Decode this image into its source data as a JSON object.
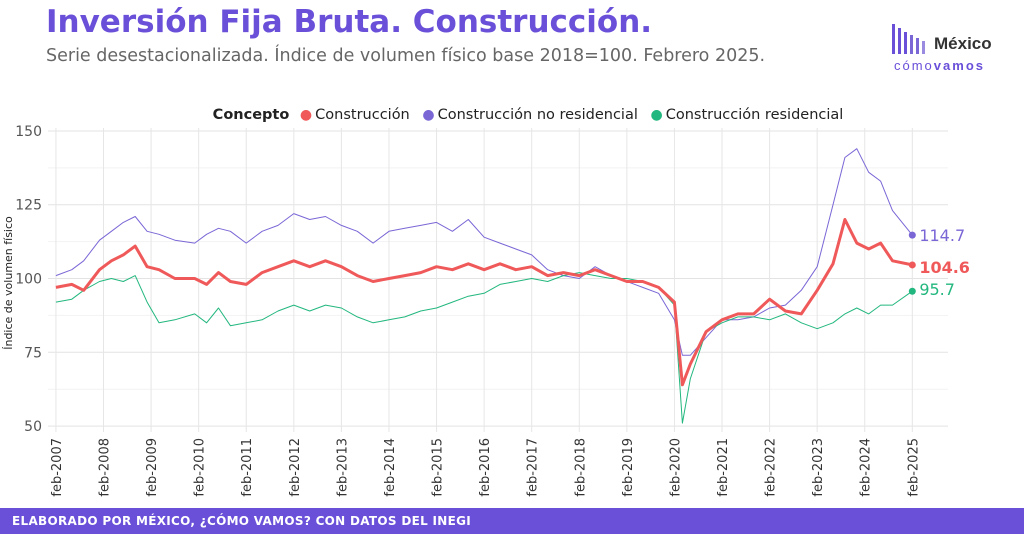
{
  "header": {
    "title": "Inversión Fija Bruta. Construcción.",
    "subtitle": "Serie desestacionalizada. Índice de volumen físico base 2018=100. Febrero 2025."
  },
  "logo": {
    "word1": "México",
    "word2a": "cómo",
    "word2b": "vamos"
  },
  "footer": {
    "text": "ELABORADO POR MÉXICO, ¿CÓMO VAMOS? CON DATOS DEL INEGI"
  },
  "colors": {
    "accent": "#6a4fd9",
    "construccion": "#f0595a",
    "no_residencial": "#7b66d6",
    "residencial": "#22b77e"
  },
  "chart_data": {
    "type": "line",
    "legend_title": "Concepto",
    "legend_position": "top",
    "ylabel": "Índice de volumen físico",
    "xlabel": "",
    "ylim": [
      48,
      151
    ],
    "yticks": [
      50,
      75,
      100,
      125,
      150
    ],
    "grid": true,
    "xticks": [
      "feb-2007",
      "feb-2008",
      "feb-2009",
      "feb-2010",
      "feb-2011",
      "feb-2012",
      "feb-2013",
      "feb-2014",
      "feb-2015",
      "feb-2016",
      "feb-2017",
      "feb-2018",
      "feb-2019",
      "feb-2020",
      "feb-2021",
      "feb-2022",
      "feb-2023",
      "feb-2024",
      "feb-2025"
    ],
    "series": [
      {
        "name": "Construcción",
        "color": "#f0595a",
        "end_label": "104.6",
        "points": [
          [
            "2007-02",
            97
          ],
          [
            "2007-06",
            98
          ],
          [
            "2007-09",
            96
          ],
          [
            "2008-01",
            103
          ],
          [
            "2008-04",
            106
          ],
          [
            "2008-07",
            108
          ],
          [
            "2008-10",
            111
          ],
          [
            "2009-01",
            104
          ],
          [
            "2009-04",
            103
          ],
          [
            "2009-08",
            100
          ],
          [
            "2010-01",
            100
          ],
          [
            "2010-04",
            98
          ],
          [
            "2010-07",
            102
          ],
          [
            "2010-10",
            99
          ],
          [
            "2011-02",
            98
          ],
          [
            "2011-06",
            102
          ],
          [
            "2011-10",
            104
          ],
          [
            "2012-02",
            106
          ],
          [
            "2012-06",
            104
          ],
          [
            "2012-10",
            106
          ],
          [
            "2013-02",
            104
          ],
          [
            "2013-06",
            101
          ],
          [
            "2013-10",
            99
          ],
          [
            "2014-02",
            100
          ],
          [
            "2014-06",
            101
          ],
          [
            "2014-10",
            102
          ],
          [
            "2015-02",
            104
          ],
          [
            "2015-06",
            103
          ],
          [
            "2015-10",
            105
          ],
          [
            "2016-02",
            103
          ],
          [
            "2016-06",
            105
          ],
          [
            "2016-10",
            103
          ],
          [
            "2017-02",
            104
          ],
          [
            "2017-06",
            101
          ],
          [
            "2017-10",
            102
          ],
          [
            "2018-02",
            101
          ],
          [
            "2018-06",
            103
          ],
          [
            "2018-10",
            101
          ],
          [
            "2019-02",
            99
          ],
          [
            "2019-06",
            99
          ],
          [
            "2019-10",
            97
          ],
          [
            "2020-02",
            92
          ],
          [
            "2020-04",
            64
          ],
          [
            "2020-06",
            71
          ],
          [
            "2020-10",
            82
          ],
          [
            "2021-02",
            86
          ],
          [
            "2021-06",
            88
          ],
          [
            "2021-10",
            88
          ],
          [
            "2022-02",
            93
          ],
          [
            "2022-06",
            89
          ],
          [
            "2022-10",
            88
          ],
          [
            "2023-02",
            96
          ],
          [
            "2023-06",
            105
          ],
          [
            "2023-09",
            120
          ],
          [
            "2023-12",
            112
          ],
          [
            "2024-03",
            110
          ],
          [
            "2024-06",
            112
          ],
          [
            "2024-09",
            106
          ],
          [
            "2025-02",
            104.6
          ]
        ]
      },
      {
        "name": "Construcción no residencial",
        "color": "#7b66d6",
        "end_label": "114.7",
        "points": [
          [
            "2007-02",
            101
          ],
          [
            "2007-06",
            103
          ],
          [
            "2007-09",
            106
          ],
          [
            "2008-01",
            113
          ],
          [
            "2008-04",
            116
          ],
          [
            "2008-07",
            119
          ],
          [
            "2008-10",
            121
          ],
          [
            "2009-01",
            116
          ],
          [
            "2009-04",
            115
          ],
          [
            "2009-08",
            113
          ],
          [
            "2010-01",
            112
          ],
          [
            "2010-04",
            115
          ],
          [
            "2010-07",
            117
          ],
          [
            "2010-10",
            116
          ],
          [
            "2011-02",
            112
          ],
          [
            "2011-06",
            116
          ],
          [
            "2011-10",
            118
          ],
          [
            "2012-02",
            122
          ],
          [
            "2012-06",
            120
          ],
          [
            "2012-10",
            121
          ],
          [
            "2013-02",
            118
          ],
          [
            "2013-06",
            116
          ],
          [
            "2013-10",
            112
          ],
          [
            "2014-02",
            116
          ],
          [
            "2014-06",
            117
          ],
          [
            "2014-10",
            118
          ],
          [
            "2015-02",
            119
          ],
          [
            "2015-06",
            116
          ],
          [
            "2015-10",
            120
          ],
          [
            "2016-02",
            114
          ],
          [
            "2016-06",
            112
          ],
          [
            "2016-10",
            110
          ],
          [
            "2017-02",
            108
          ],
          [
            "2017-06",
            103
          ],
          [
            "2017-10",
            101
          ],
          [
            "2018-02",
            100
          ],
          [
            "2018-06",
            104
          ],
          [
            "2018-10",
            101
          ],
          [
            "2019-02",
            99
          ],
          [
            "2019-06",
            97
          ],
          [
            "2019-10",
            95
          ],
          [
            "2020-02",
            86
          ],
          [
            "2020-04",
            74
          ],
          [
            "2020-06",
            74
          ],
          [
            "2020-10",
            80
          ],
          [
            "2021-02",
            86
          ],
          [
            "2021-06",
            86
          ],
          [
            "2021-10",
            87
          ],
          [
            "2022-02",
            90
          ],
          [
            "2022-06",
            91
          ],
          [
            "2022-10",
            96
          ],
          [
            "2023-02",
            104
          ],
          [
            "2023-06",
            125
          ],
          [
            "2023-09",
            141
          ],
          [
            "2023-12",
            144
          ],
          [
            "2024-03",
            136
          ],
          [
            "2024-06",
            133
          ],
          [
            "2024-09",
            123
          ],
          [
            "2025-02",
            114.7
          ]
        ]
      },
      {
        "name": "Construcción residencial",
        "color": "#22b77e",
        "end_label": "95.7",
        "points": [
          [
            "2007-02",
            92
          ],
          [
            "2007-06",
            93
          ],
          [
            "2007-09",
            96
          ],
          [
            "2008-01",
            99
          ],
          [
            "2008-04",
            100
          ],
          [
            "2008-07",
            99
          ],
          [
            "2008-10",
            101
          ],
          [
            "2009-01",
            92
          ],
          [
            "2009-04",
            85
          ],
          [
            "2009-08",
            86
          ],
          [
            "2010-01",
            88
          ],
          [
            "2010-04",
            85
          ],
          [
            "2010-07",
            90
          ],
          [
            "2010-10",
            84
          ],
          [
            "2011-02",
            85
          ],
          [
            "2011-06",
            86
          ],
          [
            "2011-10",
            89
          ],
          [
            "2012-02",
            91
          ],
          [
            "2012-06",
            89
          ],
          [
            "2012-10",
            91
          ],
          [
            "2013-02",
            90
          ],
          [
            "2013-06",
            87
          ],
          [
            "2013-10",
            85
          ],
          [
            "2014-02",
            86
          ],
          [
            "2014-06",
            87
          ],
          [
            "2014-10",
            89
          ],
          [
            "2015-02",
            90
          ],
          [
            "2015-06",
            92
          ],
          [
            "2015-10",
            94
          ],
          [
            "2016-02",
            95
          ],
          [
            "2016-06",
            98
          ],
          [
            "2016-10",
            99
          ],
          [
            "2017-02",
            100
          ],
          [
            "2017-06",
            99
          ],
          [
            "2017-10",
            101
          ],
          [
            "2018-02",
            102
          ],
          [
            "2018-06",
            101
          ],
          [
            "2018-10",
            100
          ],
          [
            "2019-02",
            100
          ],
          [
            "2019-06",
            99
          ],
          [
            "2019-10",
            97
          ],
          [
            "2020-02",
            91
          ],
          [
            "2020-04",
            51
          ],
          [
            "2020-06",
            66
          ],
          [
            "2020-10",
            82
          ],
          [
            "2021-02",
            85
          ],
          [
            "2021-06",
            87
          ],
          [
            "2021-10",
            87
          ],
          [
            "2022-02",
            86
          ],
          [
            "2022-06",
            88
          ],
          [
            "2022-10",
            85
          ],
          [
            "2023-02",
            83
          ],
          [
            "2023-06",
            85
          ],
          [
            "2023-09",
            88
          ],
          [
            "2023-12",
            90
          ],
          [
            "2024-03",
            88
          ],
          [
            "2024-06",
            91
          ],
          [
            "2024-09",
            91
          ],
          [
            "2025-02",
            95.7
          ]
        ]
      }
    ]
  }
}
